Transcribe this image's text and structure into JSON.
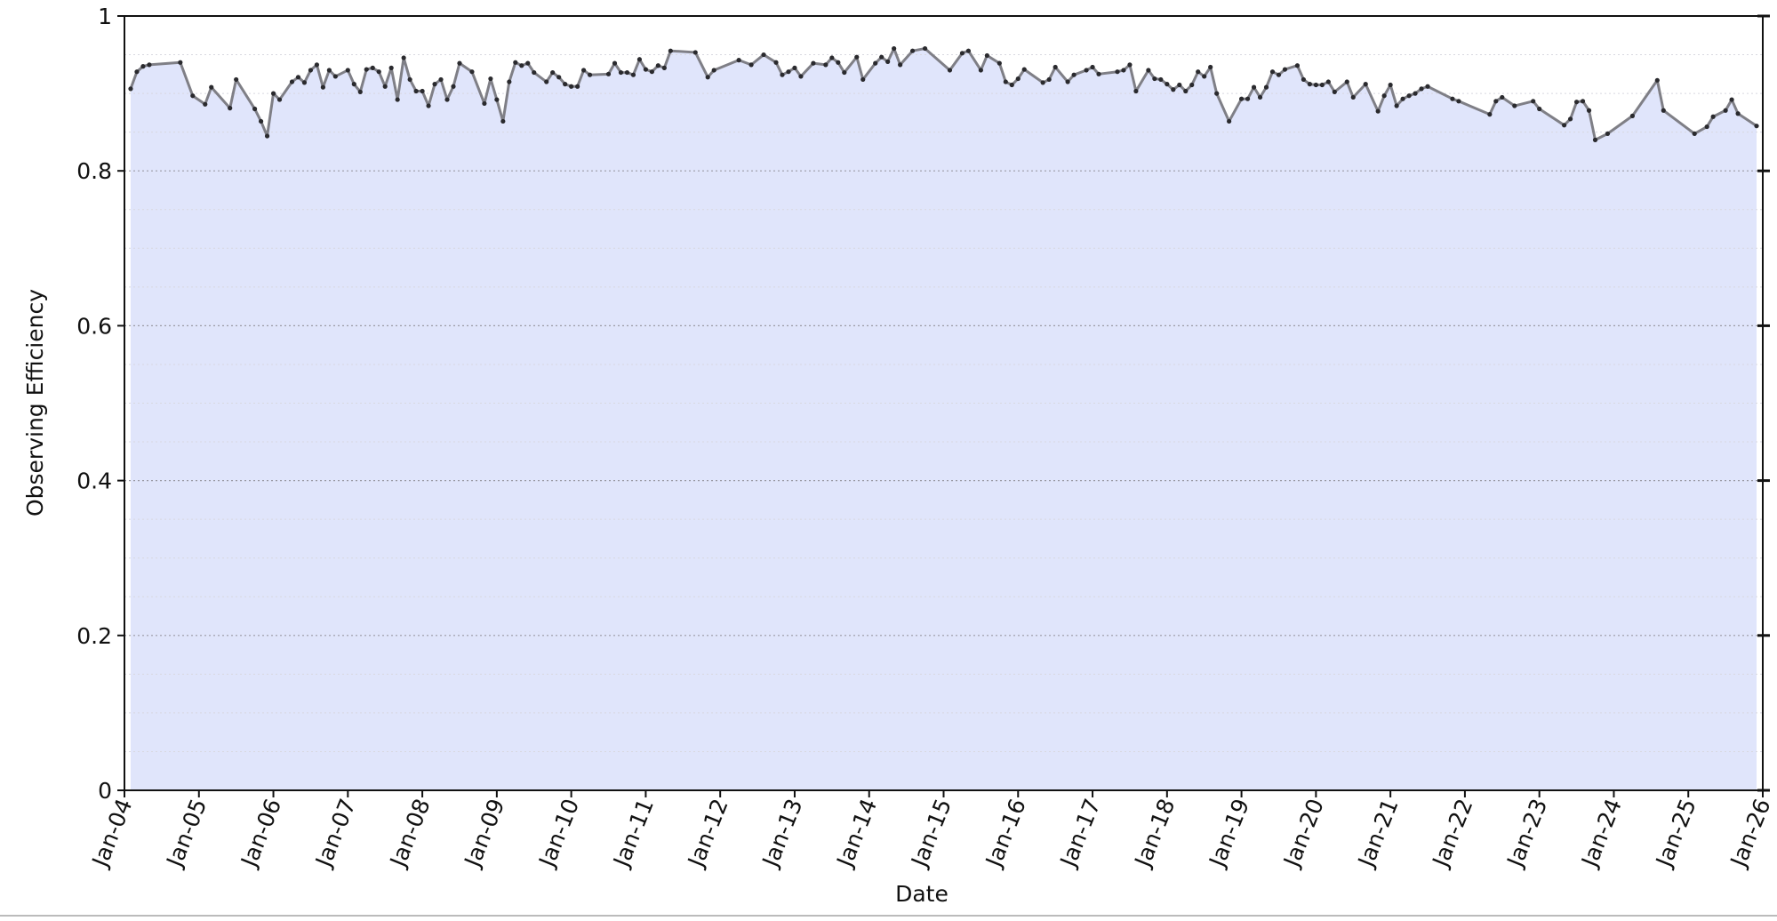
{
  "chart_data": {
    "type": "line",
    "xlabel": "Date",
    "ylabel": "Observing Efficiency",
    "line_color": "#7f7f86",
    "fill_color": "#e0e5fb",
    "marker_color": "#2a2a2e",
    "grid": true,
    "ylim": [
      0,
      1
    ],
    "yticks": [
      0,
      0.2,
      0.4,
      0.6,
      0.8,
      1
    ],
    "yminorticks": [
      0.05,
      0.1,
      0.15,
      0.25,
      0.3,
      0.35,
      0.45,
      0.5,
      0.55,
      0.65,
      0.7,
      0.75,
      0.85,
      0.9,
      0.95
    ],
    "xlim": [
      "2004-01",
      "2026-01"
    ],
    "xticks": [
      {
        "value": "2004-01",
        "label": "Jan-04"
      },
      {
        "value": "2005-01",
        "label": "Jan-05"
      },
      {
        "value": "2006-01",
        "label": "Jan-06"
      },
      {
        "value": "2007-01",
        "label": "Jan-07"
      },
      {
        "value": "2008-01",
        "label": "Jan-08"
      },
      {
        "value": "2009-01",
        "label": "Jan-09"
      },
      {
        "value": "2010-01",
        "label": "Jan-10"
      },
      {
        "value": "2011-01",
        "label": "Jan-11"
      },
      {
        "value": "2012-01",
        "label": "Jan-12"
      },
      {
        "value": "2013-01",
        "label": "Jan-13"
      },
      {
        "value": "2014-01",
        "label": "Jan-14"
      },
      {
        "value": "2015-01",
        "label": "Jan-15"
      },
      {
        "value": "2016-01",
        "label": "Jan-16"
      },
      {
        "value": "2017-01",
        "label": "Jan-17"
      },
      {
        "value": "2018-01",
        "label": "Jan-18"
      },
      {
        "value": "2019-01",
        "label": "Jan-19"
      },
      {
        "value": "2020-01",
        "label": "Jan-20"
      },
      {
        "value": "2021-01",
        "label": "Jan-21"
      },
      {
        "value": "2022-01",
        "label": "Jan-22"
      },
      {
        "value": "2023-01",
        "label": "Jan-23"
      },
      {
        "value": "2024-01",
        "label": "Jan-24"
      },
      {
        "value": "2025-01",
        "label": "Jan-25"
      },
      {
        "value": "2026-01",
        "label": "Jan-26"
      }
    ],
    "x": [
      "2004-02",
      "2004-03",
      "2004-04",
      "2004-05",
      "2004-10",
      "2004-12",
      "2005-02",
      "2005-03",
      "2005-06",
      "2005-07",
      "2005-10",
      "2005-11",
      "2005-12",
      "2006-01",
      "2006-02",
      "2006-04",
      "2006-05",
      "2006-06",
      "2006-07",
      "2006-08",
      "2006-09",
      "2006-10",
      "2006-11",
      "2007-01",
      "2007-02",
      "2007-03",
      "2007-04",
      "2007-05",
      "2007-06",
      "2007-07",
      "2007-08",
      "2007-09",
      "2007-10",
      "2007-11",
      "2007-12",
      "2008-01",
      "2008-02",
      "2008-03",
      "2008-04",
      "2008-05",
      "2008-06",
      "2008-07",
      "2008-09",
      "2008-11",
      "2008-12",
      "2009-01",
      "2009-02",
      "2009-03",
      "2009-04",
      "2009-05",
      "2009-06",
      "2009-07",
      "2009-09",
      "2009-10",
      "2009-11",
      "2009-12",
      "2010-01",
      "2010-02",
      "2010-03",
      "2010-04",
      "2010-07",
      "2010-08",
      "2010-09",
      "2010-10",
      "2010-11",
      "2010-12",
      "2011-01",
      "2011-02",
      "2011-03",
      "2011-04",
      "2011-05",
      "2011-09",
      "2011-11",
      "2011-12",
      "2012-04",
      "2012-06",
      "2012-08",
      "2012-10",
      "2012-11",
      "2012-12",
      "2013-01",
      "2013-02",
      "2013-04",
      "2013-06",
      "2013-07",
      "2013-08",
      "2013-09",
      "2013-11",
      "2013-12",
      "2014-02",
      "2014-03",
      "2014-04",
      "2014-05",
      "2014-06",
      "2014-08",
      "2014-10",
      "2015-02",
      "2015-04",
      "2015-05",
      "2015-07",
      "2015-08",
      "2015-10",
      "2015-11",
      "2015-12",
      "2016-01",
      "2016-02",
      "2016-05",
      "2016-06",
      "2016-07",
      "2016-09",
      "2016-10",
      "2016-12",
      "2017-01",
      "2017-02",
      "2017-05",
      "2017-06",
      "2017-07",
      "2017-08",
      "2017-10",
      "2017-11",
      "2017-12",
      "2018-01",
      "2018-02",
      "2018-03",
      "2018-04",
      "2018-05",
      "2018-06",
      "2018-07",
      "2018-08",
      "2018-09",
      "2018-11",
      "2019-01",
      "2019-02",
      "2019-03",
      "2019-04",
      "2019-05",
      "2019-06",
      "2019-07",
      "2019-08",
      "2019-10",
      "2019-11",
      "2019-12",
      "2020-01",
      "2020-02",
      "2020-03",
      "2020-04",
      "2020-06",
      "2020-07",
      "2020-09",
      "2020-11",
      "2020-12",
      "2021-01",
      "2021-02",
      "2021-03",
      "2021-04",
      "2021-05",
      "2021-06",
      "2021-07",
      "2021-11",
      "2021-12",
      "2022-05",
      "2022-06",
      "2022-07",
      "2022-09",
      "2022-12",
      "2023-01",
      "2023-05",
      "2023-06",
      "2023-07",
      "2023-08",
      "2023-09",
      "2023-10",
      "2023-12",
      "2024-04",
      "2024-08",
      "2024-09",
      "2025-02",
      "2025-04",
      "2025-05",
      "2025-07",
      "2025-08",
      "2025-09",
      "2025-12"
    ],
    "values": [
      0.906,
      0.928,
      0.935,
      0.937,
      0.94,
      0.897,
      0.886,
      0.908,
      0.881,
      0.918,
      0.88,
      0.864,
      0.845,
      0.9,
      0.892,
      0.915,
      0.921,
      0.914,
      0.93,
      0.937,
      0.908,
      0.93,
      0.922,
      0.93,
      0.912,
      0.902,
      0.931,
      0.933,
      0.928,
      0.909,
      0.933,
      0.892,
      0.946,
      0.918,
      0.903,
      0.903,
      0.884,
      0.912,
      0.918,
      0.892,
      0.909,
      0.939,
      0.928,
      0.887,
      0.919,
      0.892,
      0.864,
      0.915,
      0.94,
      0.936,
      0.939,
      0.927,
      0.915,
      0.927,
      0.921,
      0.912,
      0.909,
      0.909,
      0.93,
      0.924,
      0.925,
      0.939,
      0.927,
      0.927,
      0.924,
      0.944,
      0.931,
      0.928,
      0.936,
      0.933,
      0.955,
      0.953,
      0.921,
      0.93,
      0.943,
      0.937,
      0.95,
      0.94,
      0.924,
      0.928,
      0.933,
      0.922,
      0.939,
      0.937,
      0.946,
      0.94,
      0.927,
      0.947,
      0.918,
      0.939,
      0.947,
      0.941,
      0.958,
      0.937,
      0.955,
      0.958,
      0.93,
      0.952,
      0.955,
      0.93,
      0.949,
      0.939,
      0.915,
      0.911,
      0.919,
      0.931,
      0.914,
      0.918,
      0.934,
      0.915,
      0.924,
      0.93,
      0.934,
      0.925,
      0.928,
      0.93,
      0.937,
      0.903,
      0.93,
      0.919,
      0.918,
      0.912,
      0.905,
      0.911,
      0.903,
      0.911,
      0.928,
      0.922,
      0.934,
      0.9,
      0.864,
      0.893,
      0.893,
      0.908,
      0.895,
      0.908,
      0.928,
      0.924,
      0.931,
      0.936,
      0.918,
      0.912,
      0.911,
      0.911,
      0.915,
      0.902,
      0.915,
      0.895,
      0.912,
      0.877,
      0.897,
      0.911,
      0.884,
      0.893,
      0.897,
      0.9,
      0.906,
      0.909,
      0.893,
      0.89,
      0.873,
      0.89,
      0.895,
      0.884,
      0.89,
      0.88,
      0.859,
      0.867,
      0.889,
      0.89,
      0.878,
      0.84,
      0.848,
      0.871,
      0.917,
      0.878,
      0.848,
      0.857,
      0.87,
      0.878,
      0.892,
      0.874,
      0.858
    ]
  }
}
